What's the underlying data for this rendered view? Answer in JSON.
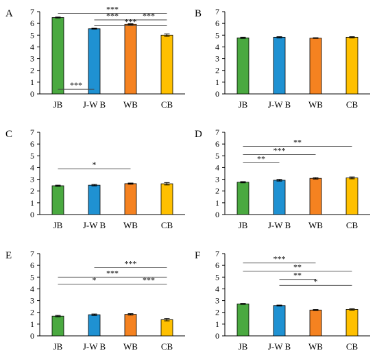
{
  "chart_data": [
    {
      "type": "bar",
      "panel": "A",
      "categories": [
        "JB",
        "J-W B",
        "WB",
        "CB"
      ],
      "values": [
        6.5,
        5.55,
        5.93,
        5.0
      ],
      "errors": [
        0.04,
        0.04,
        0.04,
        0.1
      ],
      "colors": [
        "#4aa940",
        "#1f91d2",
        "#f58220",
        "#ffc000"
      ],
      "ylim": [
        0,
        7
      ],
      "yticks": [
        "0",
        "1",
        "2",
        "3",
        "4",
        "5",
        "6",
        "7"
      ],
      "comparisons": [
        {
          "from": 0,
          "to": 1,
          "level": 0.4,
          "label": "***"
        },
        {
          "from": 0,
          "to": 3,
          "level": 6.86,
          "label": "***"
        },
        {
          "from": 1,
          "to": 2,
          "level": 6.3,
          "label": "***"
        },
        {
          "from": 2,
          "to": 3,
          "level": 6.3,
          "label": "***"
        },
        {
          "from": 1,
          "to": 3,
          "level": 5.8,
          "label": "***"
        }
      ]
    },
    {
      "type": "bar",
      "panel": "B",
      "categories": [
        "JB",
        "J-W B",
        "WB",
        "CB"
      ],
      "values": [
        4.77,
        4.82,
        4.75,
        4.82
      ],
      "errors": [
        0.05,
        0.05,
        0.03,
        0.05
      ],
      "colors": [
        "#4aa940",
        "#1f91d2",
        "#f58220",
        "#ffc000"
      ],
      "ylim": [
        0,
        7
      ],
      "yticks": [
        "0",
        "1",
        "2",
        "3",
        "4",
        "5",
        "6",
        "7"
      ],
      "comparisons": []
    },
    {
      "type": "bar",
      "panel": "C",
      "categories": [
        "JB",
        "J-W B",
        "WB",
        "CB"
      ],
      "values": [
        2.45,
        2.5,
        2.63,
        2.62
      ],
      "errors": [
        0.05,
        0.06,
        0.05,
        0.1
      ],
      "colors": [
        "#4aa940",
        "#1f91d2",
        "#f58220",
        "#ffc000"
      ],
      "ylim": [
        0,
        7
      ],
      "yticks": [
        "0",
        "1",
        "2",
        "3",
        "4",
        "5",
        "6",
        "7"
      ],
      "comparisons": [
        {
          "from": 0,
          "to": 2,
          "level": 3.9,
          "label": "*"
        }
      ]
    },
    {
      "type": "bar",
      "panel": "D",
      "categories": [
        "JB",
        "J-W B",
        "WB",
        "CB"
      ],
      "values": [
        2.75,
        2.92,
        3.08,
        3.12
      ],
      "errors": [
        0.05,
        0.07,
        0.06,
        0.08
      ],
      "colors": [
        "#4aa940",
        "#1f91d2",
        "#f58220",
        "#ffc000"
      ],
      "ylim": [
        0,
        7
      ],
      "yticks": [
        "0",
        "1",
        "2",
        "3",
        "4",
        "5",
        "6",
        "7"
      ],
      "comparisons": [
        {
          "from": 0,
          "to": 3,
          "level": 5.8,
          "label": "**"
        },
        {
          "from": 0,
          "to": 2,
          "level": 5.1,
          "label": "***"
        },
        {
          "from": 0,
          "to": 1,
          "level": 4.4,
          "label": "**"
        }
      ]
    },
    {
      "type": "bar",
      "panel": "E",
      "categories": [
        "JB",
        "J-W B",
        "WB",
        "CB"
      ],
      "values": [
        1.68,
        1.8,
        1.83,
        1.38
      ],
      "errors": [
        0.06,
        0.06,
        0.06,
        0.1
      ],
      "colors": [
        "#4aa940",
        "#1f91d2",
        "#f58220",
        "#ffc000"
      ],
      "ylim": [
        0,
        7
      ],
      "yticks": [
        "0",
        "1",
        "2",
        "3",
        "4",
        "5",
        "6",
        "7"
      ],
      "comparisons": [
        {
          "from": 1,
          "to": 3,
          "level": 5.8,
          "label": "***"
        },
        {
          "from": 0,
          "to": 3,
          "level": 5.0,
          "label": "***"
        },
        {
          "from": 0,
          "to": 2,
          "level": 4.4,
          "label": "*"
        },
        {
          "from": 2,
          "to": 3,
          "level": 4.4,
          "label": "***"
        }
      ]
    },
    {
      "type": "bar",
      "panel": "F",
      "categories": [
        "JB",
        "J-W B",
        "WB",
        "CB"
      ],
      "values": [
        2.72,
        2.58,
        2.2,
        2.25
      ],
      "errors": [
        0.04,
        0.04,
        0.04,
        0.06
      ],
      "colors": [
        "#4aa940",
        "#1f91d2",
        "#f58220",
        "#ffc000"
      ],
      "ylim": [
        0,
        7
      ],
      "yticks": [
        "0",
        "1",
        "2",
        "3",
        "4",
        "5",
        "6",
        "7"
      ],
      "comparisons": [
        {
          "from": 0,
          "to": 2,
          "level": 6.2,
          "label": "***"
        },
        {
          "from": 0,
          "to": 3,
          "level": 5.5,
          "label": "**"
        },
        {
          "from": 1,
          "to": 2,
          "level": 4.8,
          "label": "**"
        },
        {
          "from": 1,
          "to": 3,
          "level": 4.3,
          "label": "*"
        }
      ]
    }
  ]
}
